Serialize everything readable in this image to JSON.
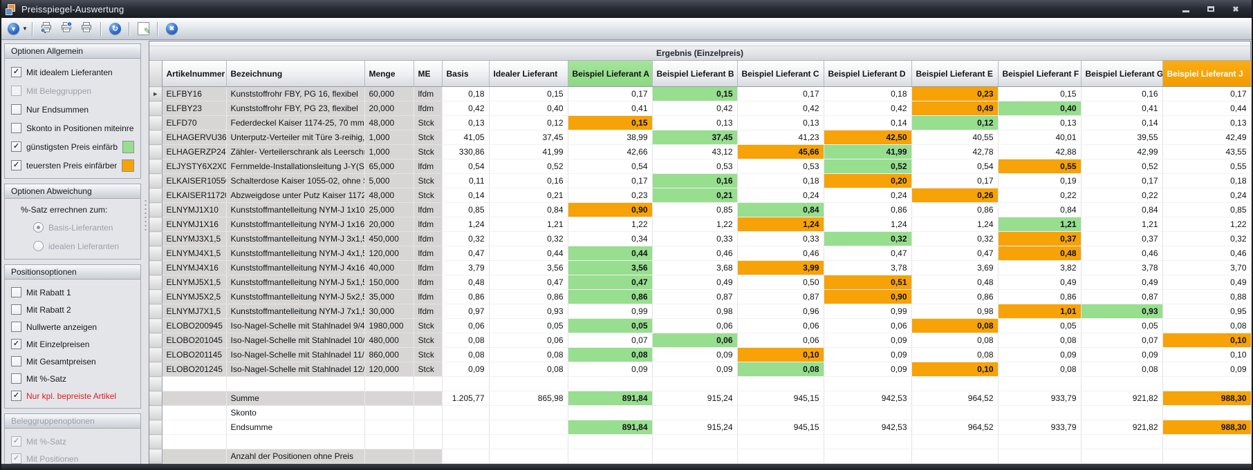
{
  "window": {
    "title": "Preisspiegel-Auswertung",
    "controls": [
      "minimize",
      "maximize",
      "close"
    ]
  },
  "toolbar": {
    "buttons": [
      "options-menu",
      "|",
      "print-preview",
      "print-settings",
      "print",
      "|",
      "refresh",
      "|",
      "edit-report",
      "|",
      "close"
    ]
  },
  "sidebar": {
    "groups": [
      {
        "title": "Optionen Allgemein",
        "items": [
          {
            "type": "checkbox",
            "label": "Mit idealem Lieferanten",
            "checked": true
          },
          {
            "type": "checkbox",
            "label": "Mit Beleggruppen",
            "checked": false,
            "disabled": true
          },
          {
            "type": "checkbox",
            "label": "Nur Endsummen",
            "checked": false
          },
          {
            "type": "checkbox",
            "label": "Skonto in Positionen miteinrechnen",
            "checked": false
          },
          {
            "type": "checkbox",
            "label": "günstigsten Preis einfärben",
            "checked": true,
            "swatch": "#97DE8F"
          },
          {
            "type": "checkbox",
            "label": "teuersten Preis einfärben",
            "checked": true,
            "swatch": "#F7A206"
          }
        ]
      },
      {
        "title": "Optionen Abweichung",
        "items": [
          {
            "type": "caption",
            "label": "%-Satz errechnen zum:"
          },
          {
            "type": "radio",
            "label": "Basis-Lieferanten",
            "selected": true,
            "disabled": true
          },
          {
            "type": "radio",
            "label": "idealen Lieferanten",
            "selected": false,
            "disabled": true
          }
        ]
      },
      {
        "title": "Positionsoptionen",
        "compact": true,
        "items": [
          {
            "type": "checkbox",
            "label": "Mit Rabatt 1",
            "checked": false
          },
          {
            "type": "checkbox",
            "label": "Mit Rabatt 2",
            "checked": false
          },
          {
            "type": "checkbox",
            "label": "Nullwerte anzeigen",
            "checked": false
          },
          {
            "type": "checkbox",
            "label": "Mit Einzelpreisen",
            "checked": true
          },
          {
            "type": "checkbox",
            "label": "Mit Gesamtpreisen",
            "checked": false
          },
          {
            "type": "checkbox",
            "label": "Mit %-Satz",
            "checked": false
          },
          {
            "type": "checkbox",
            "label": "Nur kpl. bepreiste Artikel",
            "checked": true,
            "emphasis": "red"
          }
        ]
      },
      {
        "title": "Beleggruppenoptionen",
        "disabled": true,
        "compact": true,
        "items": [
          {
            "type": "checkbox",
            "label": "Mit %-Satz",
            "checked": true,
            "disabled": true
          },
          {
            "type": "checkbox",
            "label": "Mit Positionen",
            "checked": true,
            "disabled": true
          }
        ]
      }
    ]
  },
  "table": {
    "band_title": "Ergebnis (Einzelpreis)",
    "columns": [
      "Artikelnummer",
      "Bezeichnung",
      "Menge",
      "ME",
      "Basis",
      "Idealer Lieferant",
      "Beispiel Lieferant A",
      "Beispiel Lieferant B",
      "Beispiel Lieferant C",
      "Beispiel Lieferant D",
      "Beispiel Lieferant E",
      "Beispiel Lieferant F",
      "Beispiel Lieferant G",
      "Beispiel Lieferant J"
    ],
    "highlight_colors": {
      "min": "#97DE8F",
      "max": "#F7A206"
    },
    "rows": [
      {
        "art": "ELFBY16",
        "bez": "Kunststoffrohr FBY, PG 16, flexibel",
        "menge": "60,000",
        "me": "lfdm",
        "basis": "0,18",
        "prices": [
          "0,15",
          "0,17",
          "0,15",
          "0,17",
          "0,18",
          "0,23",
          "0,15",
          "0,16",
          "0,17"
        ],
        "min": 2,
        "max": 5
      },
      {
        "art": "ELFBY23",
        "bez": "Kunststoffrohr FBY, PG 23, flexibel",
        "menge": "20,000",
        "me": "lfdm",
        "basis": "0,42",
        "prices": [
          "0,40",
          "0,41",
          "0,42",
          "0,42",
          "0,42",
          "0,49",
          "0,40",
          "0,41",
          "0,44"
        ],
        "min": 6,
        "max": 5
      },
      {
        "art": "ELFD70",
        "bez": "Federdeckel Kaiser 1174-25, 70 mm",
        "menge": "48,000",
        "me": "Stck",
        "basis": "0,13",
        "prices": [
          "0,12",
          "0,15",
          "0,13",
          "0,13",
          "0,14",
          "0,12",
          "0,13",
          "0,14",
          "0,13"
        ],
        "min": 5,
        "max": 1
      },
      {
        "art": "ELHAGERVU36C",
        "bez": "Unterputz-Verteiler mit Türe 3-reihig, ...",
        "menge": "1,000",
        "me": "Stck",
        "basis": "41,05",
        "prices": [
          "37,45",
          "38,99",
          "37,45",
          "41,23",
          "42,50",
          "40,55",
          "40,01",
          "39,55",
          "42,49"
        ],
        "min": 2,
        "max": 4
      },
      {
        "art": "ELHAGERZP24W",
        "bez": "Zähler- Verteilerschrank als Leerschra...",
        "menge": "1,000",
        "me": "Stck",
        "basis": "330,86",
        "prices": [
          "41,99",
          "42,66",
          "43,12",
          "45,66",
          "41,99",
          "42,78",
          "42,88",
          "42,99",
          "43,55"
        ],
        "min": 4,
        "max": 3
      },
      {
        "art": "ELJYSTY6X2X0,8",
        "bez": "Fernmelde-Installationsleitung J-Y(ST)...",
        "menge": "65,000",
        "me": "lfdm",
        "basis": "0,54",
        "prices": [
          "0,52",
          "0,54",
          "0,53",
          "0,53",
          "0,52",
          "0,54",
          "0,55",
          "0,52",
          "0,55"
        ],
        "min": 4,
        "max": 6
      },
      {
        "art": "ELKAISER105502",
        "bez": "Schalterdose Kaiser 1055-02, ohne Sc...",
        "menge": "5,000",
        "me": "Stck",
        "basis": "0,11",
        "prices": [
          "0,16",
          "0,17",
          "0,16",
          "0,18",
          "0,20",
          "0,17",
          "0,19",
          "0,17",
          "0,18"
        ],
        "min": 2,
        "max": 4
      },
      {
        "art": "ELKAISER117202",
        "bez": "Abzweigdose unter Putz Kaiser 1172-02",
        "menge": "48,000",
        "me": "Stck",
        "basis": "0,14",
        "prices": [
          "0,21",
          "0,23",
          "0,21",
          "0,24",
          "0,24",
          "0,26",
          "0,22",
          "0,22",
          "0,24"
        ],
        "min": 2,
        "max": 5
      },
      {
        "art": "ELNYMJ1X10",
        "bez": "Kunststoffmantelleitung NYM-J 1x10 q...",
        "menge": "25,000",
        "me": "lfdm",
        "basis": "0,85",
        "prices": [
          "0,84",
          "0,90",
          "0,85",
          "0,84",
          "0,86",
          "0,86",
          "0,84",
          "0,84",
          "0,85"
        ],
        "min": 3,
        "max": 1
      },
      {
        "art": "ELNYMJ1X16",
        "bez": "Kunststoffmantelleitung NYM-J 1x16 q...",
        "menge": "20,000",
        "me": "lfdm",
        "basis": "1,24",
        "prices": [
          "1,21",
          "1,22",
          "1,22",
          "1,24",
          "1,24",
          "1,24",
          "1,21",
          "1,21",
          "1,22"
        ],
        "min": 6,
        "max": 3
      },
      {
        "art": "ELNYMJ3X1,5",
        "bez": "Kunststoffmantelleitung NYM-J 3x1,5 ...",
        "menge": "450,000",
        "me": "lfdm",
        "basis": "0,32",
        "prices": [
          "0,32",
          "0,34",
          "0,33",
          "0,33",
          "0,32",
          "0,32",
          "0,37",
          "0,37",
          "0,32"
        ],
        "min": 4,
        "max": 6
      },
      {
        "art": "ELNYMJ4X1,5",
        "bez": "Kunststoffmantelleitung NYM-J 4x1,5 ...",
        "menge": "120,000",
        "me": "lfdm",
        "basis": "0,47",
        "prices": [
          "0,44",
          "0,44",
          "0,46",
          "0,46",
          "0,47",
          "0,47",
          "0,48",
          "0,46",
          "0,46"
        ],
        "min": 1,
        "max": 6
      },
      {
        "art": "ELNYMJ4X16",
        "bez": "Kunststoffmantelleitung NYM-J 4x16 q...",
        "menge": "40,000",
        "me": "lfdm",
        "basis": "3,79",
        "prices": [
          "3,56",
          "3,56",
          "3,68",
          "3,99",
          "3,78",
          "3,69",
          "3,82",
          "3,78",
          "3,70"
        ],
        "min": 1,
        "max": 3
      },
      {
        "art": "ELNYMJ5X1,5",
        "bez": "Kunststoffmantelleitung NYM-J 5x1,5 ...",
        "menge": "150,000",
        "me": "lfdm",
        "basis": "0,48",
        "prices": [
          "0,47",
          "0,47",
          "0,49",
          "0,50",
          "0,51",
          "0,48",
          "0,49",
          "0,49",
          "0,49"
        ],
        "min": 1,
        "max": 4
      },
      {
        "art": "ELNYMJ5X2,5",
        "bez": "Kunststoffmantelleitung NYM-J 5x2,5 ...",
        "menge": "35,000",
        "me": "lfdm",
        "basis": "0,86",
        "prices": [
          "0,86",
          "0,86",
          "0,87",
          "0,87",
          "0,90",
          "0,86",
          "0,86",
          "0,87",
          "0,88"
        ],
        "min": 1,
        "max": 4
      },
      {
        "art": "ELNYMJ7X1,5",
        "bez": "Kunststoffmantelleitung NYM-J 7x1,5 ...",
        "menge": "30,000",
        "me": "lfdm",
        "basis": "0,97",
        "prices": [
          "0,93",
          "0,99",
          "0,98",
          "0,96",
          "0,99",
          "0,98",
          "1,01",
          "0,93",
          "0,95"
        ],
        "min": 7,
        "max": 6
      },
      {
        "art": "ELOBO200945",
        "bez": "Iso-Nagel-Schelle mit Stahlnadel 9/45 ...",
        "menge": "1980,000",
        "me": "Stck",
        "basis": "0,06",
        "prices": [
          "0,05",
          "0,05",
          "0,06",
          "0,06",
          "0,06",
          "0,08",
          "0,05",
          "0,05",
          "0,08"
        ],
        "min": 1,
        "max": 5
      },
      {
        "art": "ELOBO201045",
        "bez": "Iso-Nagel-Schelle mit Stahlnadel 10/4...",
        "menge": "480,000",
        "me": "Stck",
        "basis": "0,08",
        "prices": [
          "0,06",
          "0,07",
          "0,06",
          "0,06",
          "0,09",
          "0,08",
          "0,08",
          "0,07",
          "0,10"
        ],
        "min": 2,
        "max": 8
      },
      {
        "art": "ELOBO201145",
        "bez": "Iso-Nagel-Schelle mit Stahlnadel 11/4...",
        "menge": "860,000",
        "me": "Stck",
        "basis": "0,08",
        "prices": [
          "0,08",
          "0,08",
          "0,09",
          "0,10",
          "0,09",
          "0,08",
          "0,09",
          "0,09",
          "0,10"
        ],
        "min": 1,
        "max": 3
      },
      {
        "art": "ELOBO201245",
        "bez": "Iso-Nagel-Schelle mit Stahlnadel 12/4...",
        "menge": "120,000",
        "me": "Stck",
        "basis": "0,09",
        "prices": [
          "0,08",
          "0,09",
          "0,09",
          "0,08",
          "0,09",
          "0,10",
          "0,08",
          "0,08",
          "0,09"
        ],
        "min": 3,
        "max": 5
      }
    ],
    "summary_rows": [
      {
        "label": "",
        "shaded": false
      },
      {
        "label": "Summe",
        "shaded": true,
        "basis": "1.205,77",
        "prices": [
          "865,98",
          "891,84",
          "915,24",
          "945,15",
          "942,53",
          "964,52",
          "933,79",
          "921,82",
          "988,30"
        ],
        "min": 1,
        "max": 8
      },
      {
        "label": "Skonto",
        "shaded": false
      },
      {
        "label": "Endsumme",
        "shaded": false,
        "prices": [
          "",
          "891,84",
          "915,24",
          "945,15",
          "942,53",
          "964,52",
          "933,79",
          "921,82",
          "988,30"
        ],
        "min": 1,
        "max": 8
      },
      {
        "label": "",
        "shaded": false
      },
      {
        "label": "Anzahl der Positionen ohne Preis",
        "shaded": true
      }
    ]
  }
}
